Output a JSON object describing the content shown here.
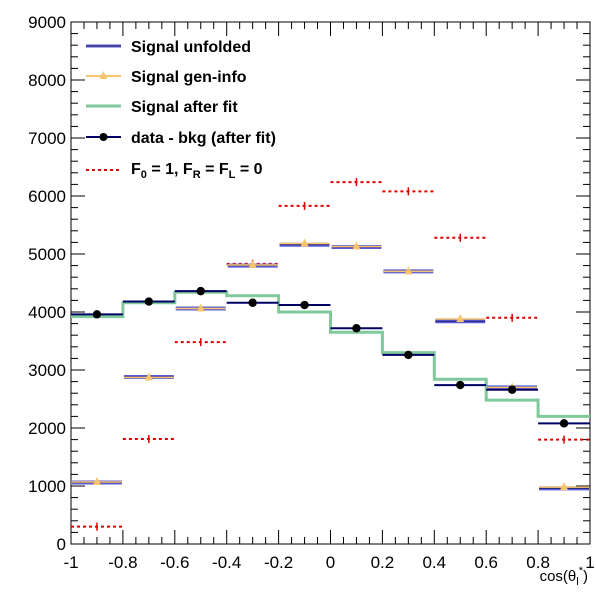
{
  "chart_data": {
    "type": "step",
    "x_edges": [
      -1,
      -0.8,
      -0.6,
      -0.4,
      -0.2,
      0,
      0.2,
      0.4,
      0.6,
      0.8,
      1
    ],
    "xlim": [
      -1,
      1
    ],
    "ylim": [
      0,
      9000
    ],
    "x_ticks": [
      -1,
      -0.8,
      -0.6,
      -0.4,
      -0.2,
      0,
      0.2,
      0.4,
      0.6,
      0.8,
      1
    ],
    "y_ticks": [
      0,
      1000,
      2000,
      3000,
      4000,
      5000,
      6000,
      7000,
      8000,
      9000
    ],
    "x_tick_labels": [
      "-1",
      "-0.8",
      "-0.6",
      "-0.4",
      "-0.2",
      "0",
      "0.2",
      "0.4",
      "0.6",
      "0.8",
      "1"
    ],
    "y_tick_labels": [
      "0",
      "1000",
      "2000",
      "3000",
      "4000",
      "5000",
      "6000",
      "7000",
      "8000",
      "9000"
    ],
    "xlabel": "cos(θ_l*)",
    "xlabel_main": "cos(θ",
    "xlabel_sub": "l",
    "xlabel_sup": "*",
    "xlabel_close": ")",
    "grid": false,
    "legend_position": "top-left",
    "series": [
      {
        "name": "Signal unfolded",
        "style": "hline",
        "color": "#5a5ad6",
        "values": [
          1060,
          2880,
          4060,
          4800,
          5160,
          5120,
          4700,
          3840,
          2700,
          960
        ]
      },
      {
        "name": "Signal gen-info",
        "style": "triangle",
        "color": "#f7c36b",
        "values": [
          1070,
          2870,
          4060,
          4810,
          5180,
          5130,
          4700,
          3880,
          2700,
          980
        ]
      },
      {
        "name": "Signal after fit",
        "style": "step",
        "color": "#7fc99b",
        "values": [
          3920,
          4160,
          4340,
          4280,
          4000,
          3650,
          3300,
          2840,
          2480,
          2200
        ]
      },
      {
        "name": "data - bkg (after fit)",
        "style": "point",
        "color": "#000066",
        "values": [
          3960,
          4180,
          4360,
          4160,
          4120,
          3720,
          3260,
          2740,
          2660,
          2080
        ]
      },
      {
        "name": "F_0 = 1, F_R = F_L = 0",
        "style": "dashed",
        "color": "#e00000",
        "values": [
          300,
          1810,
          3480,
          4830,
          5830,
          6240,
          6080,
          5280,
          3900,
          1800
        ]
      }
    ],
    "legend_labels": {
      "s1": "Signal unfolded",
      "s2": "Signal gen-info",
      "s3": "Signal after fit",
      "s4": "data - bkg (after fit)",
      "s5_f": "F",
      "s5_sub0": "0",
      "s5_mid1": " = 1, F",
      "s5_subR": "R",
      "s5_mid2": " = F",
      "s5_subL": "L",
      "s5_end": " = 0"
    }
  }
}
